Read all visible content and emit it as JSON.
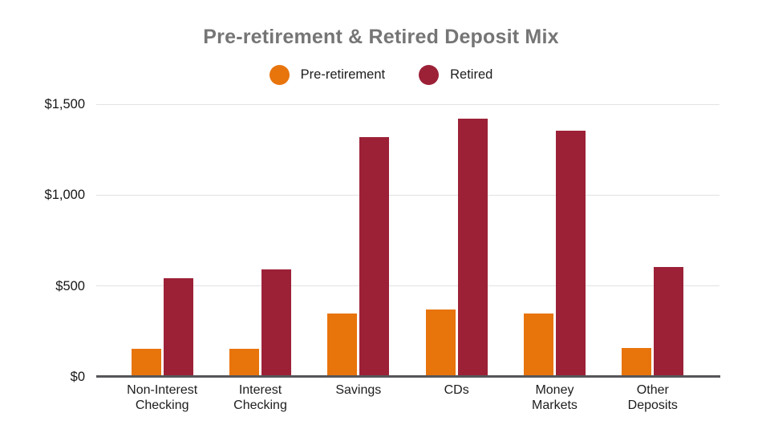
{
  "chart_data": {
    "type": "bar",
    "title": "Pre-retirement & Retired Deposit Mix",
    "categories": [
      [
        "Non-Interest",
        "Checking"
      ],
      [
        "Interest",
        "Checking"
      ],
      [
        "Savings"
      ],
      [
        "CDs"
      ],
      [
        "Money",
        "Markets"
      ],
      [
        "Other",
        "Deposits"
      ]
    ],
    "series": [
      {
        "name": "Pre-retirement",
        "color": "#E8740C",
        "values": [
          155,
          155,
          350,
          370,
          350,
          160
        ]
      },
      {
        "name": "Retired",
        "color": "#9C2137",
        "values": [
          545,
          590,
          1320,
          1420,
          1355,
          605
        ]
      }
    ],
    "yticks": [
      {
        "label": "$0",
        "value": 0
      },
      {
        "label": "$500",
        "value": 500
      },
      {
        "label": "$1,000",
        "value": 1000
      },
      {
        "label": "$1,500",
        "value": 1500
      }
    ],
    "ylim": [
      0,
      1500
    ],
    "xlabel": "",
    "ylabel": "",
    "grid": true,
    "legend_position": "top"
  },
  "colors": {
    "title_text": "#757575",
    "axis_text": "#1d1d1d",
    "gridline": "#e2e2e2",
    "baseline": "#56565a",
    "background": "#ffffff"
  }
}
